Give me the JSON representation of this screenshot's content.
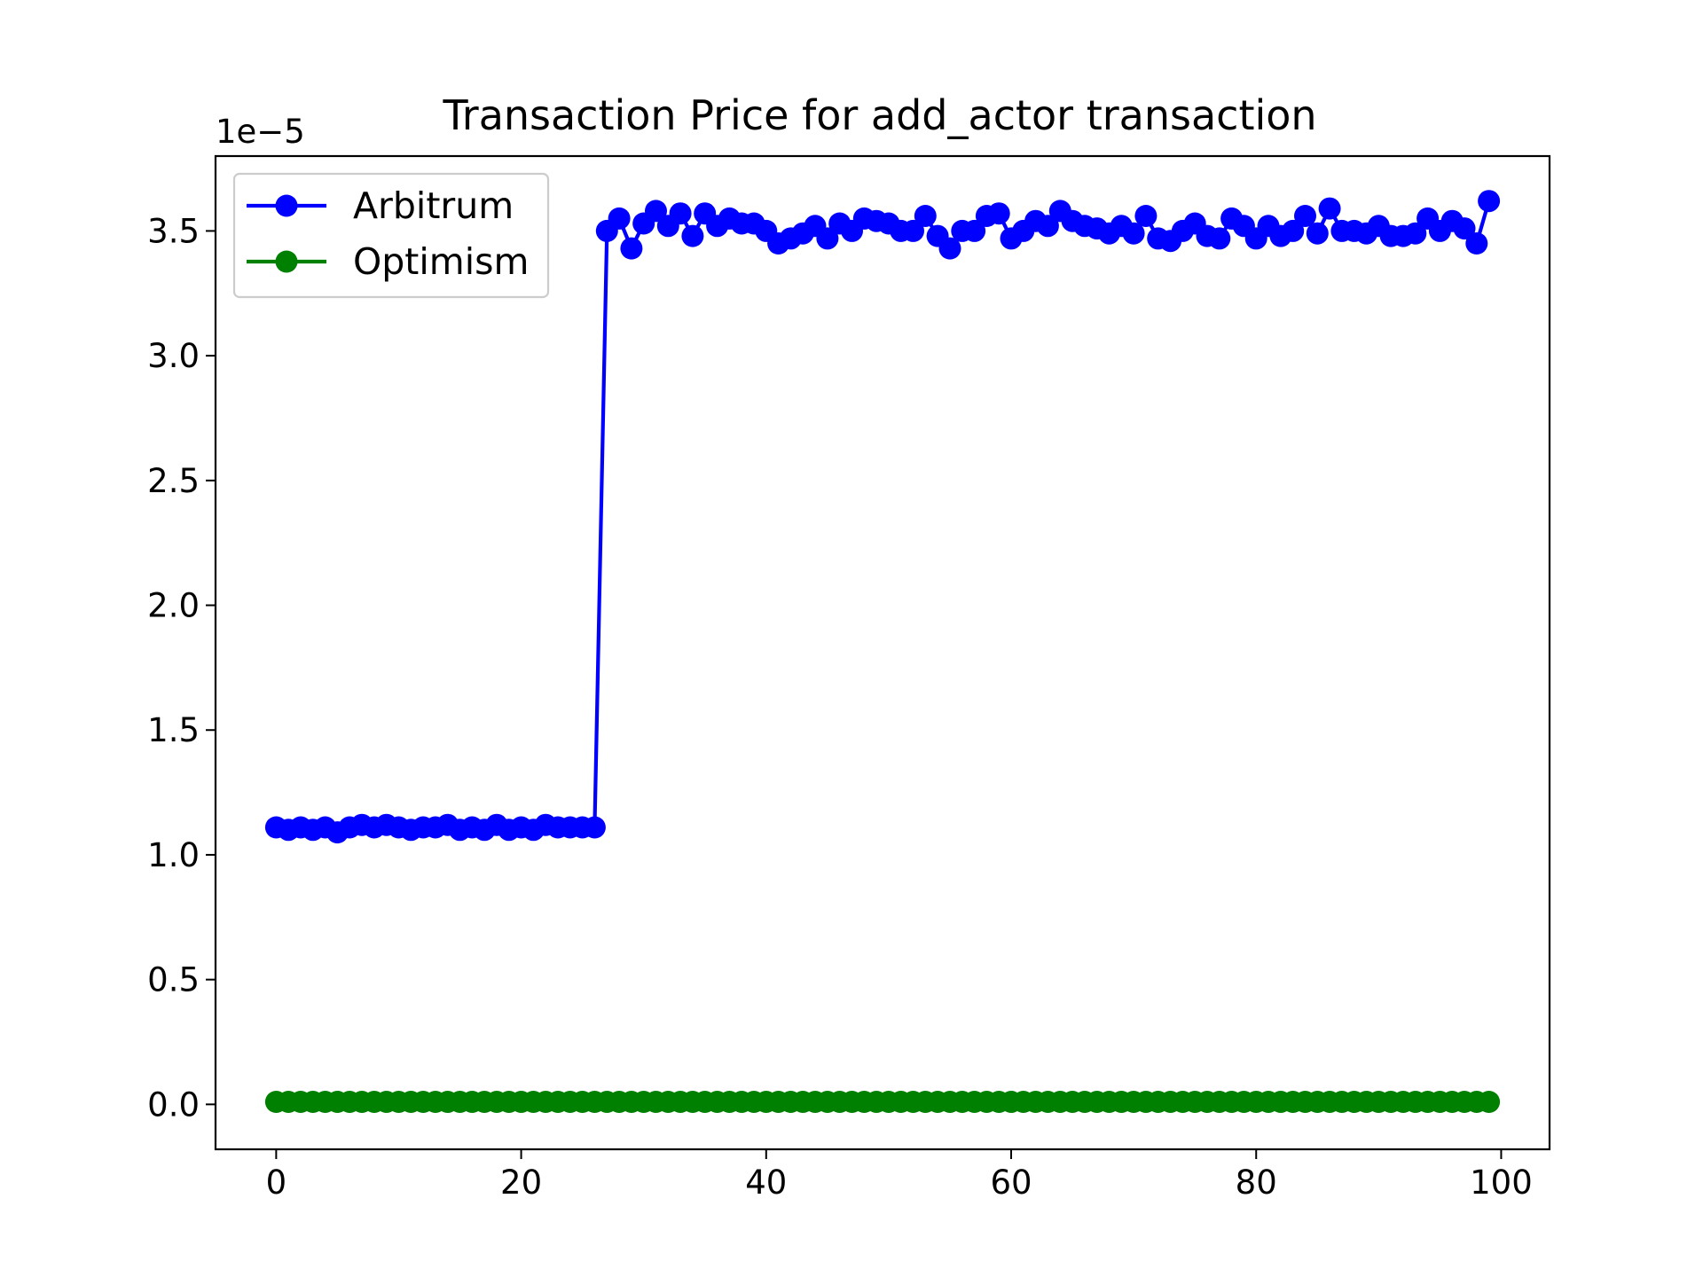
{
  "chart_data": {
    "type": "line",
    "title": "Transaction Price for add_actor transaction",
    "xlabel": "",
    "ylabel": "",
    "y_offset_label": "1e−5",
    "xlim": [
      -4.95,
      103.95
    ],
    "ylim": [
      -0.18,
      3.8
    ],
    "y_scale_note": "values in units of 1e-5",
    "xticks": [
      0,
      20,
      40,
      60,
      80,
      100
    ],
    "xtick_labels": [
      "0",
      "20",
      "40",
      "60",
      "80",
      "100"
    ],
    "yticks": [
      0.0,
      0.5,
      1.0,
      1.5,
      2.0,
      2.5,
      3.0,
      3.5
    ],
    "ytick_labels": [
      "0.0",
      "0.5",
      "1.0",
      "1.5",
      "2.0",
      "2.5",
      "3.0",
      "3.5"
    ],
    "grid": false,
    "legend_position": "upper-left",
    "x": [
      0,
      1,
      2,
      3,
      4,
      5,
      6,
      7,
      8,
      9,
      10,
      11,
      12,
      13,
      14,
      15,
      16,
      17,
      18,
      19,
      20,
      21,
      22,
      23,
      24,
      25,
      26,
      27,
      28,
      29,
      30,
      31,
      32,
      33,
      34,
      35,
      36,
      37,
      38,
      39,
      40,
      41,
      42,
      43,
      44,
      45,
      46,
      47,
      48,
      49,
      50,
      51,
      52,
      53,
      54,
      55,
      56,
      57,
      58,
      59,
      60,
      61,
      62,
      63,
      64,
      65,
      66,
      67,
      68,
      69,
      70,
      71,
      72,
      73,
      74,
      75,
      76,
      77,
      78,
      79,
      80,
      81,
      82,
      83,
      84,
      85,
      86,
      87,
      88,
      89,
      90,
      91,
      92,
      93,
      94,
      95,
      96,
      97,
      98,
      99
    ],
    "series": [
      {
        "name": "Arbitrum",
        "color": "#0000ff",
        "values": [
          1.11,
          1.1,
          1.11,
          1.1,
          1.11,
          1.09,
          1.11,
          1.12,
          1.11,
          1.12,
          1.11,
          1.1,
          1.11,
          1.11,
          1.12,
          1.1,
          1.11,
          1.1,
          1.12,
          1.1,
          1.11,
          1.1,
          1.12,
          1.11,
          1.11,
          1.11,
          1.11,
          3.5,
          3.55,
          3.43,
          3.53,
          3.58,
          3.52,
          3.57,
          3.48,
          3.57,
          3.52,
          3.55,
          3.53,
          3.53,
          3.5,
          3.45,
          3.47,
          3.49,
          3.52,
          3.47,
          3.53,
          3.5,
          3.55,
          3.54,
          3.53,
          3.5,
          3.5,
          3.56,
          3.48,
          3.43,
          3.5,
          3.5,
          3.56,
          3.57,
          3.47,
          3.5,
          3.54,
          3.52,
          3.58,
          3.54,
          3.52,
          3.51,
          3.49,
          3.52,
          3.49,
          3.56,
          3.47,
          3.46,
          3.5,
          3.53,
          3.48,
          3.47,
          3.55,
          3.52,
          3.47,
          3.52,
          3.48,
          3.5,
          3.56,
          3.49,
          3.59,
          3.5,
          3.5,
          3.49,
          3.52,
          3.48,
          3.48,
          3.49,
          3.55,
          3.5,
          3.54,
          3.51,
          3.45,
          3.62
        ]
      },
      {
        "name": "Optimism",
        "color": "#008000",
        "values": [
          0.01,
          0.01,
          0.01,
          0.01,
          0.01,
          0.01,
          0.01,
          0.01,
          0.01,
          0.01,
          0.01,
          0.01,
          0.01,
          0.01,
          0.01,
          0.01,
          0.01,
          0.01,
          0.01,
          0.01,
          0.01,
          0.01,
          0.01,
          0.01,
          0.01,
          0.01,
          0.01,
          0.01,
          0.01,
          0.01,
          0.01,
          0.01,
          0.01,
          0.01,
          0.01,
          0.01,
          0.01,
          0.01,
          0.01,
          0.01,
          0.01,
          0.01,
          0.01,
          0.01,
          0.01,
          0.01,
          0.01,
          0.01,
          0.01,
          0.01,
          0.01,
          0.01,
          0.01,
          0.01,
          0.01,
          0.01,
          0.01,
          0.01,
          0.01,
          0.01,
          0.01,
          0.01,
          0.01,
          0.01,
          0.01,
          0.01,
          0.01,
          0.01,
          0.01,
          0.01,
          0.01,
          0.01,
          0.01,
          0.01,
          0.01,
          0.01,
          0.01,
          0.01,
          0.01,
          0.01,
          0.01,
          0.01,
          0.01,
          0.01,
          0.01,
          0.01,
          0.01,
          0.01,
          0.01,
          0.01,
          0.01,
          0.01,
          0.01,
          0.01,
          0.01,
          0.01,
          0.01,
          0.01,
          0.01,
          0.01
        ]
      }
    ]
  }
}
